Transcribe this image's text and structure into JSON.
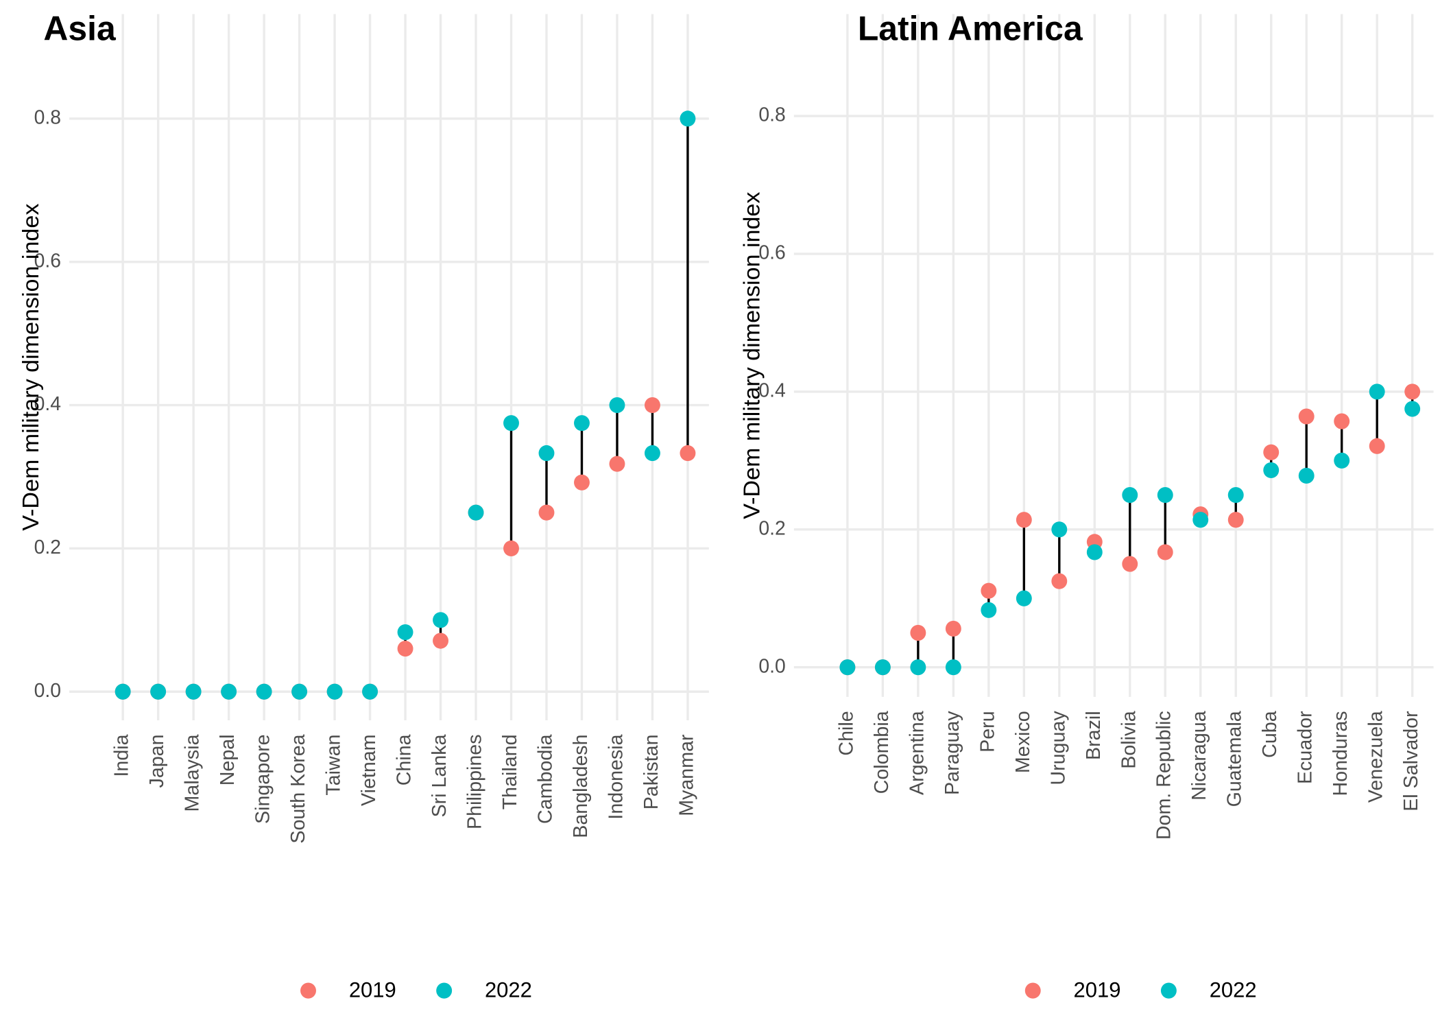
{
  "chart_data": [
    {
      "type": "dumbbell",
      "title": "Asia",
      "y_label": "V-Dem military dimension index",
      "categories": [
        "India",
        "Japan",
        "Malaysia",
        "Nepal",
        "Singapore",
        "South Korea",
        "Taiwan",
        "Vietnam",
        "China",
        "Sri Lanka",
        "Philippines",
        "Thailand",
        "Cambodia",
        "Bangladesh",
        "Indonesia",
        "Pakistan",
        "Myanmar"
      ],
      "series": [
        {
          "name": "2019",
          "color": "#F8766D",
          "values": [
            0,
            0,
            0,
            0,
            0,
            0,
            0,
            0,
            0.06,
            0.071,
            0.25,
            0.2,
            0.25,
            0.292,
            0.318,
            0.4,
            0.333
          ]
        },
        {
          "name": "2022",
          "color": "#00BFC4",
          "values": [
            0,
            0,
            0,
            0,
            0,
            0,
            0,
            0,
            0.083,
            0.1,
            0.25,
            0.375,
            0.333,
            0.375,
            0.4,
            0.333,
            0.8
          ]
        }
      ],
      "ylim": [
        -0.04,
        0.946
      ],
      "yticks": [
        {
          "value": 0,
          "label": "0.0"
        },
        0.2,
        0.4,
        0.6,
        0.8
      ],
      "grid": true,
      "legend": "bottom"
    },
    {
      "type": "dumbbell",
      "title": "Latin America",
      "y_label": "V-Dem military dimension index",
      "categories": [
        "Chile",
        "Colombia",
        "Argentina",
        "Paraguay",
        "Peru",
        "Mexico",
        "Uruguay",
        "Brazil",
        "Bolivia",
        "Dom. Republic",
        "Nicaragua",
        "Guatemala",
        "Cuba",
        "Ecuador",
        "Honduras",
        "Venezuela",
        "El Salvador"
      ],
      "series": [
        {
          "name": "2019",
          "color": "#F8766D",
          "values": [
            0,
            0,
            0.05,
            0.056,
            0.111,
            0.214,
            0.125,
            0.182,
            0.15,
            0.167,
            0.222,
            0.214,
            0.312,
            0.364,
            0.357,
            0.321,
            0.4
          ]
        },
        {
          "name": "2022",
          "color": "#00BFC4",
          "values": [
            0,
            0,
            0,
            0,
            0.083,
            0.1,
            0.2,
            0.167,
            0.25,
            0.25,
            0.214,
            0.25,
            0.286,
            0.278,
            0.3,
            0.4,
            0.375
          ]
        }
      ],
      "ylim": [
        -0.043,
        0.948
      ],
      "yticks": [
        {
          "value": 0,
          "label": "0.0"
        },
        0.2,
        0.4,
        0.6,
        0.8
      ],
      "grid": true,
      "legend": "bottom"
    }
  ]
}
